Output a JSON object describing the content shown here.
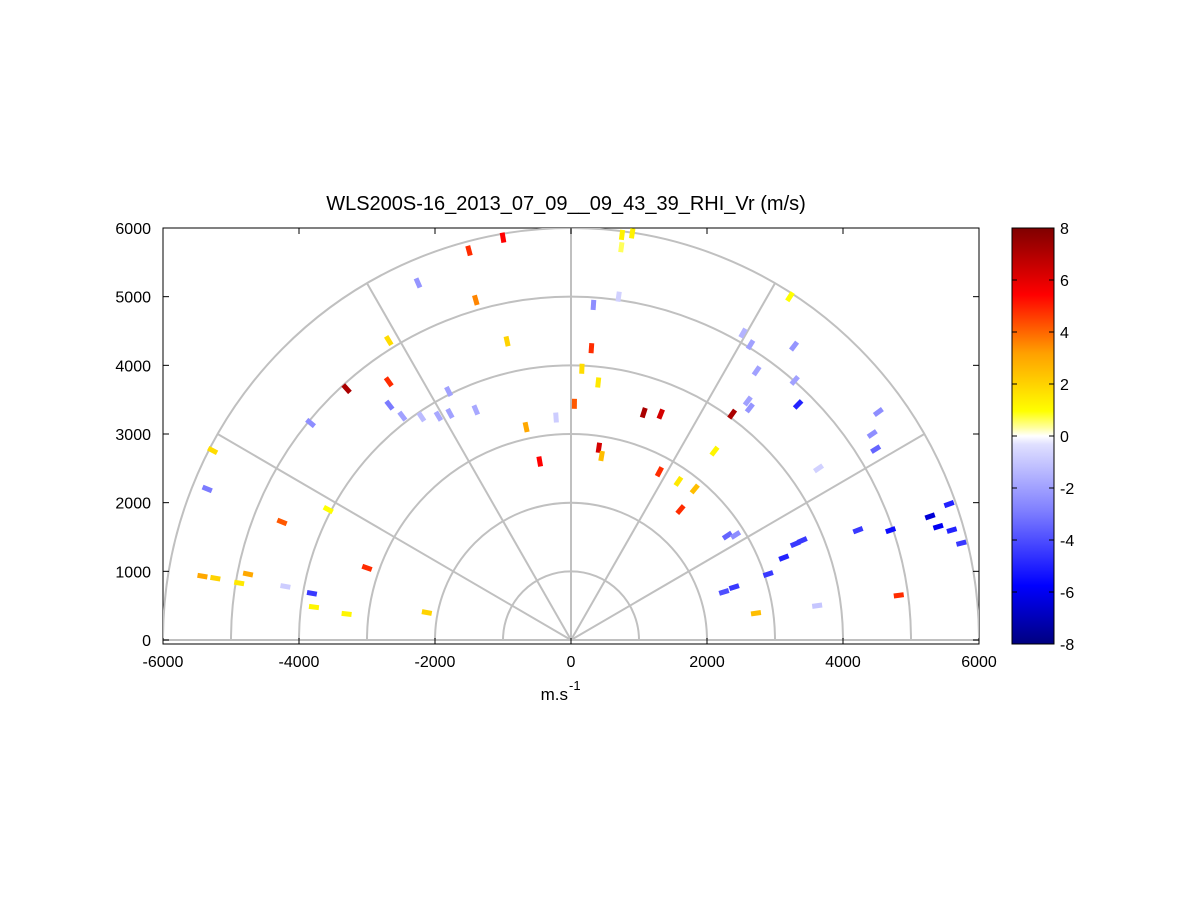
{
  "chart_data": {
    "type": "scatter",
    "subtype": "polar-rhi-sector",
    "title": "WLS200S-16_2013_07_09__09_43_39_RHI_Vr (m/s)",
    "xlabel": "m.s",
    "xlabel_superscript": "-1",
    "ylabel": "",
    "xlim": [
      -6000,
      6000
    ],
    "ylim": [
      0,
      6000
    ],
    "xticks": [
      "-6000",
      "-4000",
      "-2000",
      "0",
      "2000",
      "4000",
      "6000"
    ],
    "yticks": [
      "0",
      "1000",
      "2000",
      "3000",
      "4000",
      "5000",
      "6000"
    ],
    "grid": true,
    "range_rings": [
      1000,
      2000,
      3000,
      4000,
      5000,
      6000
    ],
    "spokes_deg": [
      0,
      30,
      60,
      90,
      120,
      150,
      180
    ],
    "colorbar": {
      "min": -8,
      "max": 8,
      "ticks": [
        "-8",
        "-6",
        "-4",
        "-2",
        "0",
        "2",
        "4",
        "6",
        "8"
      ],
      "colormap": [
        "#00007f",
        "#0000ff",
        "#7f7fff",
        "#ffffff",
        "#ffff00",
        "#ff7f00",
        "#ff0000",
        "#7f0000"
      ]
    },
    "points": [
      {
        "x": -5270,
        "y": 2760,
        "v": 1.8
      },
      {
        "x": -5350,
        "y": 2200,
        "v": -3.0
      },
      {
        "x": -5420,
        "y": 930,
        "v": 3.0
      },
      {
        "x": -5230,
        "y": 900,
        "v": 2.0
      },
      {
        "x": -4880,
        "y": 830,
        "v": 1.5
      },
      {
        "x": -4750,
        "y": 960,
        "v": 3.0
      },
      {
        "x": -4250,
        "y": 1720,
        "v": 4.0
      },
      {
        "x": -4200,
        "y": 780,
        "v": -0.8
      },
      {
        "x": -3830,
        "y": 3160,
        "v": -2.5
      },
      {
        "x": -3810,
        "y": 680,
        "v": -4.5
      },
      {
        "x": -3780,
        "y": 480,
        "v": 1.2
      },
      {
        "x": -3570,
        "y": 1900,
        "v": 1.0
      },
      {
        "x": -3300,
        "y": 380,
        "v": 1.2
      },
      {
        "x": -3300,
        "y": 3660,
        "v": 7.0
      },
      {
        "x": -3000,
        "y": 1050,
        "v": 4.5
      },
      {
        "x": -2680,
        "y": 4360,
        "v": 1.8
      },
      {
        "x": -2680,
        "y": 3760,
        "v": 4.5
      },
      {
        "x": -2670,
        "y": 3420,
        "v": -3.0
      },
      {
        "x": -2480,
        "y": 3260,
        "v": -2.0
      },
      {
        "x": -2250,
        "y": 5200,
        "v": -2.3
      },
      {
        "x": -2200,
        "y": 3250,
        "v": -1.3
      },
      {
        "x": -2120,
        "y": 400,
        "v": 2.0
      },
      {
        "x": -1950,
        "y": 3260,
        "v": -1.8
      },
      {
        "x": -1800,
        "y": 3620,
        "v": -2.0
      },
      {
        "x": -1780,
        "y": 3300,
        "v": -2.0
      },
      {
        "x": -1500,
        "y": 5670,
        "v": 4.5
      },
      {
        "x": -1400,
        "y": 3350,
        "v": -1.8
      },
      {
        "x": -1400,
        "y": 4950,
        "v": 3.5
      },
      {
        "x": -1000,
        "y": 5860,
        "v": 5.0
      },
      {
        "x": -940,
        "y": 4350,
        "v": 2.0
      },
      {
        "x": -660,
        "y": 3100,
        "v": 3.0
      },
      {
        "x": -460,
        "y": 2600,
        "v": 5.0
      },
      {
        "x": -220,
        "y": 3240,
        "v": -0.8
      },
      {
        "x": 50,
        "y": 3440,
        "v": 4.0
      },
      {
        "x": 160,
        "y": 3950,
        "v": 1.8
      },
      {
        "x": 300,
        "y": 4250,
        "v": 4.5
      },
      {
        "x": 330,
        "y": 4880,
        "v": -2.5
      },
      {
        "x": 400,
        "y": 3750,
        "v": 1.5
      },
      {
        "x": 410,
        "y": 2800,
        "v": 6.0
      },
      {
        "x": 450,
        "y": 2680,
        "v": 2.5
      },
      {
        "x": 740,
        "y": 5720,
        "v": 0.6
      },
      {
        "x": 750,
        "y": 5900,
        "v": 1.3
      },
      {
        "x": 900,
        "y": 5920,
        "v": 1.3
      },
      {
        "x": 700,
        "y": 5000,
        "v": -0.7
      },
      {
        "x": 1070,
        "y": 3310,
        "v": 7.0
      },
      {
        "x": 1320,
        "y": 3290,
        "v": 6.0
      },
      {
        "x": 1300,
        "y": 2450,
        "v": 4.5
      },
      {
        "x": 1580,
        "y": 2310,
        "v": 1.5
      },
      {
        "x": 1610,
        "y": 1900,
        "v": 4.5
      },
      {
        "x": 1820,
        "y": 2200,
        "v": 2.5
      },
      {
        "x": 2110,
        "y": 2750,
        "v": 1.2
      },
      {
        "x": 2370,
        "y": 3290,
        "v": 7.0
      },
      {
        "x": 2300,
        "y": 1520,
        "v": -3.5
      },
      {
        "x": 2420,
        "y": 1530,
        "v": -2.5
      },
      {
        "x": 2530,
        "y": 4470,
        "v": -1.5
      },
      {
        "x": 2640,
        "y": 4300,
        "v": -2.0
      },
      {
        "x": 2730,
        "y": 3920,
        "v": -2.0
      },
      {
        "x": 2600,
        "y": 3480,
        "v": -2.0
      },
      {
        "x": 2630,
        "y": 3380,
        "v": -2.3
      },
      {
        "x": 2250,
        "y": 700,
        "v": -4.0
      },
      {
        "x": 2400,
        "y": 770,
        "v": -4.5
      },
      {
        "x": 2720,
        "y": 390,
        "v": 2.5
      },
      {
        "x": 2900,
        "y": 960,
        "v": -4.5
      },
      {
        "x": 3220,
        "y": 5000,
        "v": 1.0
      },
      {
        "x": 3280,
        "y": 4280,
        "v": -2.3
      },
      {
        "x": 3290,
        "y": 3780,
        "v": -2.0
      },
      {
        "x": 3340,
        "y": 3430,
        "v": -5.0
      },
      {
        "x": 3130,
        "y": 1200,
        "v": -5.0
      },
      {
        "x": 3300,
        "y": 1400,
        "v": -4.5
      },
      {
        "x": 3400,
        "y": 1450,
        "v": -4.5
      },
      {
        "x": 3620,
        "y": 500,
        "v": -1.0
      },
      {
        "x": 3640,
        "y": 2500,
        "v": -0.7
      },
      {
        "x": 4220,
        "y": 1600,
        "v": -4.5
      },
      {
        "x": 4520,
        "y": 3320,
        "v": -2.5
      },
      {
        "x": 4430,
        "y": 3000,
        "v": -2.5
      },
      {
        "x": 4480,
        "y": 2780,
        "v": -3.5
      },
      {
        "x": 4700,
        "y": 1600,
        "v": -5.5
      },
      {
        "x": 4820,
        "y": 650,
        "v": 4.5
      },
      {
        "x": 5280,
        "y": 1800,
        "v": -6.5
      },
      {
        "x": 5400,
        "y": 1650,
        "v": -6.0
      },
      {
        "x": 5560,
        "y": 1980,
        "v": -5.0
      },
      {
        "x": 5600,
        "y": 1600,
        "v": -5.0
      },
      {
        "x": 5740,
        "y": 1410,
        "v": -4.5
      }
    ]
  }
}
